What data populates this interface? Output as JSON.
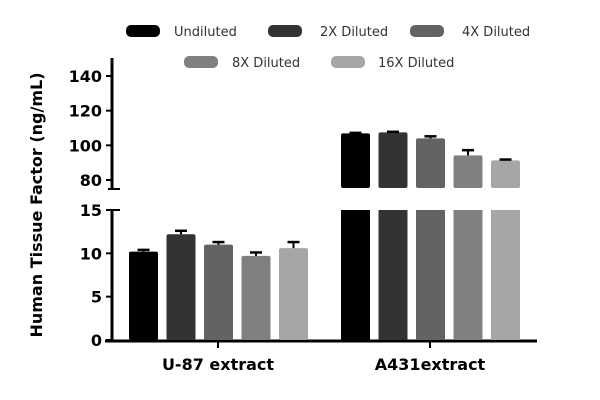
{
  "chart_data": {
    "type": "bar",
    "title": "",
    "xlabel": "",
    "ylabel": "Human Tissue Factor (ng/mL)",
    "categories": [
      "U-87 extract",
      "A431extract"
    ],
    "series": [
      {
        "name": "Undiluted",
        "color": "#000000",
        "values": [
          10.2,
          106.9
        ],
        "errors": [
          0.2,
          0.3
        ]
      },
      {
        "name": "2X Diluted",
        "color": "#333333",
        "values": [
          12.2,
          107.5
        ],
        "errors": [
          0.4,
          0.3
        ]
      },
      {
        "name": "4X Diluted",
        "color": "#636363",
        "values": [
          11.0,
          104.0
        ],
        "errors": [
          0.3,
          1.2
        ]
      },
      {
        "name": "8X Diluted",
        "color": "#808080",
        "values": [
          9.7,
          94.2
        ],
        "errors": [
          0.4,
          3.0
        ]
      },
      {
        "name": "16X Diluted",
        "color": "#a6a6a9",
        "values": [
          10.6,
          91.3
        ],
        "errors": [
          0.7,
          0.5
        ]
      }
    ],
    "y_axis_segments": [
      {
        "range": [
          0,
          15
        ],
        "ticks": [
          0,
          5,
          10,
          15
        ]
      },
      {
        "range": [
          80,
          140
        ],
        "ticks": [
          80,
          100,
          120,
          140
        ]
      }
    ],
    "axis_break": true,
    "grid": false,
    "legend_position": "top"
  },
  "legend": {
    "items": [
      "Undiluted",
      "2X Diluted",
      "4X Diluted",
      "8X Diluted",
      "16X Diluted"
    ]
  }
}
